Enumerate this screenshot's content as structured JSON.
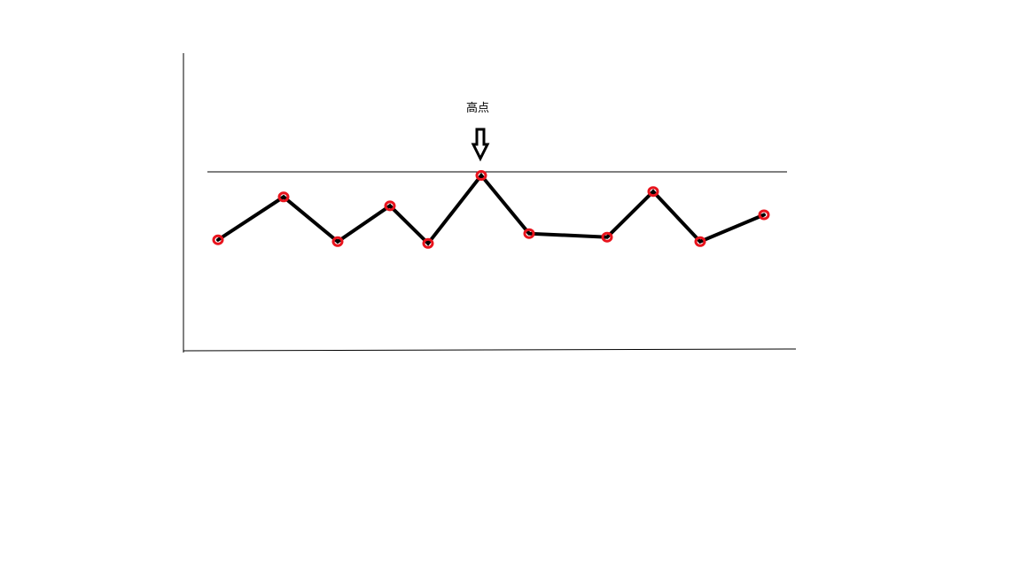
{
  "chart_data": {
    "type": "line",
    "title": "",
    "xlabel": "",
    "ylabel": "",
    "x": [
      1,
      2,
      3,
      4,
      5,
      6,
      7,
      8,
      9,
      10,
      11
    ],
    "ylim": [
      0,
      200
    ],
    "series": [
      {
        "values": [
          124,
          172,
          122,
          162,
          120,
          196,
          131,
          127,
          178,
          122,
          152
        ]
      }
    ],
    "reference_line": {
      "value": 200
    },
    "annotations": [
      {
        "text": "高点",
        "x": 6,
        "arrow": "down"
      }
    ],
    "grid": false,
    "colors": {
      "line": "#000000",
      "marker": "#e8141d",
      "axis": "#000000"
    }
  }
}
